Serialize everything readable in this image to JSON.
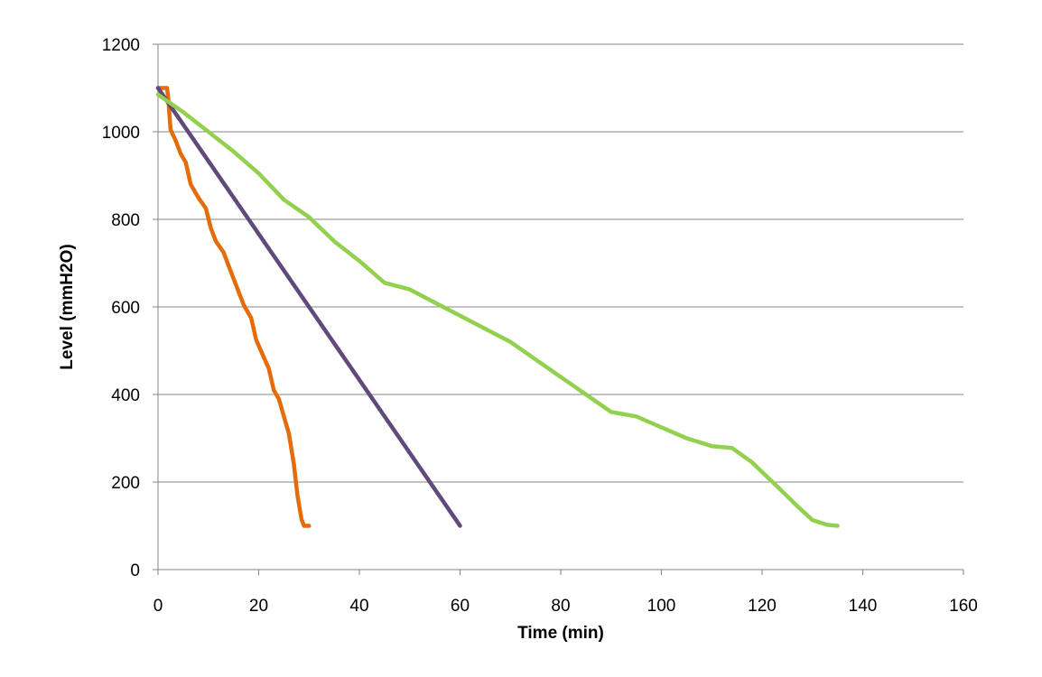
{
  "chart_data": {
    "type": "line",
    "title": "",
    "xlabel": "Time (min)",
    "ylabel": "Level (mmH2O)",
    "xlim": [
      0,
      160
    ],
    "ylim": [
      0,
      1200
    ],
    "x_ticks": [
      0,
      20,
      40,
      60,
      80,
      100,
      120,
      140,
      160
    ],
    "y_ticks": [
      0,
      200,
      400,
      600,
      800,
      1000,
      1200
    ],
    "grid": {
      "horizontal": true,
      "vertical": false
    },
    "legend": "none",
    "series": [
      {
        "color": "#E46C0A",
        "points": [
          [
            0,
            1100
          ],
          [
            1,
            1100
          ],
          [
            1.8,
            1100
          ],
          [
            2,
            1080
          ],
          [
            2.5,
            1005
          ],
          [
            3.5,
            980
          ],
          [
            4.5,
            950
          ],
          [
            5.5,
            930
          ],
          [
            6.5,
            880
          ],
          [
            8,
            850
          ],
          [
            9.5,
            825
          ],
          [
            10.5,
            780
          ],
          [
            11.5,
            750
          ],
          [
            13,
            725
          ],
          [
            14.5,
            680
          ],
          [
            16,
            635
          ],
          [
            17,
            605
          ],
          [
            18.5,
            575
          ],
          [
            19.5,
            525
          ],
          [
            21,
            485
          ],
          [
            22,
            460
          ],
          [
            23,
            410
          ],
          [
            24,
            390
          ],
          [
            25,
            350
          ],
          [
            26,
            310
          ],
          [
            27,
            240
          ],
          [
            27.7,
            170
          ],
          [
            28.5,
            115
          ],
          [
            29,
            100
          ],
          [
            30,
            100
          ]
        ]
      },
      {
        "color": "#604A7B",
        "points": [
          [
            0,
            1100
          ],
          [
            60,
            100
          ]
        ]
      },
      {
        "color": "#92D050",
        "points": [
          [
            0,
            1085
          ],
          [
            5,
            1045
          ],
          [
            10,
            1000
          ],
          [
            15,
            955
          ],
          [
            20,
            905
          ],
          [
            25,
            845
          ],
          [
            30,
            805
          ],
          [
            35,
            750
          ],
          [
            40,
            705
          ],
          [
            45,
            655
          ],
          [
            50,
            640
          ],
          [
            55,
            610
          ],
          [
            60,
            580
          ],
          [
            65,
            550
          ],
          [
            70,
            520
          ],
          [
            75,
            480
          ],
          [
            80,
            440
          ],
          [
            85,
            400
          ],
          [
            90,
            360
          ],
          [
            95,
            350
          ],
          [
            100,
            325
          ],
          [
            105,
            300
          ],
          [
            110,
            282
          ],
          [
            114,
            278
          ],
          [
            118,
            245
          ],
          [
            123,
            190
          ],
          [
            127,
            145
          ],
          [
            130,
            113
          ],
          [
            133,
            102
          ],
          [
            135,
            100
          ]
        ]
      }
    ]
  }
}
